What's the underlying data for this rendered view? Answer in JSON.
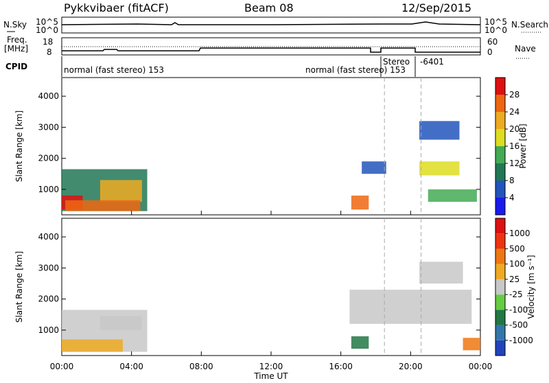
{
  "header": {
    "station": "Pykkvibaer (fitACF)",
    "beam": "Beam 08",
    "date": "12/Sep/2015"
  },
  "strip_labels": {
    "nsky": "N.Sky",
    "nsky_ticks": [
      "10^5",
      "10^0"
    ],
    "nsearch": "N.Search",
    "nsearch_ticks": [
      "10^5",
      "10^0"
    ],
    "freq_line1": "Freq.",
    "freq_line2": "[MHz]",
    "freq_ticks": [
      "18",
      "8"
    ],
    "nave": "Nave",
    "nave_ticks": [
      "60",
      "0"
    ],
    "cpid": "CPID",
    "cpid_texts": [
      "normal (fast stereo) 153",
      "normal (fast stereo) 153",
      "Stereo",
      "-6401"
    ]
  },
  "chart_data": [
    {
      "type": "heatmap",
      "title": "",
      "xlabel": "Time UT",
      "ylabel": "Slant Range [km]",
      "x_ticks": [
        "00:00",
        "04:00",
        "08:00",
        "12:00",
        "16:00",
        "20:00",
        "00:00"
      ],
      "xlim_hours": [
        0,
        24
      ],
      "ylim": [
        180,
        4600
      ],
      "y_ticks": [
        1000,
        2000,
        3000,
        4000
      ],
      "colorbar": {
        "label": "Power [dB]",
        "ticks": [
          "4",
          "8",
          "12",
          "16",
          "20",
          "24",
          "28"
        ],
        "colors": [
          "#1a1aee",
          "#2255bb",
          "#227755",
          "#44aa55",
          "#dddd22",
          "#eeaa22",
          "#ee6611",
          "#dd1111"
        ]
      },
      "regions": [
        {
          "t0": 0.0,
          "t1": 4.9,
          "r0": 300,
          "r1": 1650,
          "level": 2
        },
        {
          "t0": 0.0,
          "t1": 1.2,
          "r0": 350,
          "r1": 800,
          "level": 7
        },
        {
          "t0": 2.2,
          "t1": 4.6,
          "r0": 600,
          "r1": 1300,
          "level": 5
        },
        {
          "t0": 0.2,
          "t1": 4.5,
          "r0": 300,
          "r1": 650,
          "level": 6
        },
        {
          "t0": 16.6,
          "t1": 17.6,
          "r0": 350,
          "r1": 800,
          "level": 6
        },
        {
          "t0": 17.2,
          "t1": 18.6,
          "r0": 1500,
          "r1": 1900,
          "level": 1
        },
        {
          "t0": 20.5,
          "t1": 22.8,
          "r0": 1450,
          "r1": 1900,
          "level": 4
        },
        {
          "t0": 20.5,
          "t1": 22.8,
          "r0": 2600,
          "r1": 3200,
          "level": 1
        },
        {
          "t0": 21.0,
          "t1": 23.8,
          "r0": 600,
          "r1": 1000,
          "level": 3
        }
      ]
    },
    {
      "type": "heatmap",
      "title": "",
      "xlabel": "Time UT",
      "ylabel": "Slant Range [km]",
      "x_ticks": [
        "00:00",
        "04:00",
        "08:00",
        "12:00",
        "16:00",
        "20:00",
        "00:00"
      ],
      "xlim_hours": [
        0,
        24
      ],
      "ylim": [
        180,
        4600
      ],
      "y_ticks": [
        1000,
        2000,
        3000,
        4000
      ],
      "colorbar": {
        "label": "Velocity [m s⁻¹]",
        "ticks": [
          "1000",
          "500",
          "100",
          "25",
          "-25",
          "-100",
          "-500",
          "-1000"
        ],
        "colors": [
          "#2244bb",
          "#3377aa",
          "#227744",
          "#66cc44",
          "#c8c8c8",
          "#eeaa22",
          "#ee7711",
          "#ee3311",
          "#dd1111"
        ]
      },
      "regions": [
        {
          "t0": 0.0,
          "t1": 4.9,
          "r0": 300,
          "r1": 1650,
          "level": 4
        },
        {
          "t0": 0.0,
          "t1": 3.5,
          "r0": 300,
          "r1": 700,
          "level": 5
        },
        {
          "t0": 2.2,
          "t1": 4.6,
          "r0": 1000,
          "r1": 1450,
          "level": 4
        },
        {
          "t0": 16.6,
          "t1": 17.6,
          "r0": 400,
          "r1": 800,
          "level": 2
        },
        {
          "t0": 16.5,
          "t1": 23.5,
          "r0": 1200,
          "r1": 2300,
          "level": 4
        },
        {
          "t0": 20.5,
          "t1": 23.0,
          "r0": 2500,
          "r1": 3200,
          "level": 4
        },
        {
          "t0": 23.0,
          "t1": 24.0,
          "r0": 350,
          "r1": 750,
          "level": 6
        }
      ]
    }
  ]
}
